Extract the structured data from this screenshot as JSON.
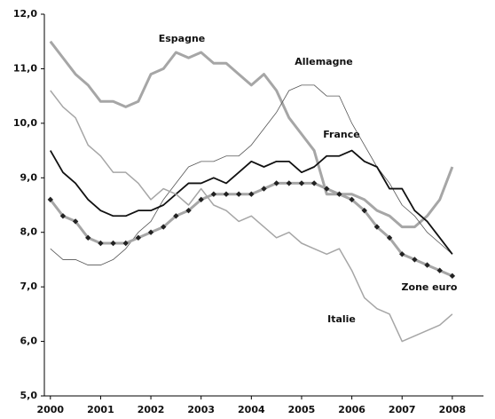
{
  "chart_data": {
    "type": "line",
    "x": [
      2000,
      2000.25,
      2000.5,
      2000.75,
      2001,
      2001.25,
      2001.5,
      2001.75,
      2002,
      2002.25,
      2002.5,
      2002.75,
      2003,
      2003.25,
      2003.5,
      2003.75,
      2004,
      2004.25,
      2004.5,
      2004.75,
      2005,
      2005.25,
      2005.5,
      2005.75,
      2006,
      2006.25,
      2006.5,
      2006.75,
      2007,
      2007.25,
      2007.5,
      2007.75,
      2008
    ],
    "series": [
      {
        "name": "Espagne",
        "color": "#a6a6a6",
        "values": [
          11.5,
          11.2,
          10.9,
          10.7,
          10.4,
          10.4,
          10.3,
          10.4,
          10.9,
          11.0,
          11.3,
          11.2,
          11.3,
          11.1,
          11.1,
          10.9,
          10.7,
          10.9,
          10.6,
          10.1,
          9.8,
          9.5,
          8.7,
          8.7,
          8.7,
          8.6,
          8.4,
          8.3,
          8.1,
          8.1,
          8.3,
          8.6,
          9.2
        ]
      },
      {
        "name": "Allemagne",
        "color": "#555555",
        "values": [
          7.7,
          7.5,
          7.5,
          7.4,
          7.4,
          7.5,
          7.7,
          8.0,
          8.2,
          8.6,
          8.9,
          9.2,
          9.3,
          9.3,
          9.4,
          9.4,
          9.6,
          9.9,
          10.2,
          10.6,
          10.7,
          10.7,
          10.5,
          10.5,
          10.0,
          9.6,
          9.2,
          8.9,
          8.5,
          8.3,
          8.0,
          7.8,
          7.6
        ]
      },
      {
        "name": "France",
        "color": "#111111",
        "values": [
          9.5,
          9.1,
          8.9,
          8.6,
          8.4,
          8.3,
          8.3,
          8.4,
          8.4,
          8.5,
          8.7,
          8.9,
          8.9,
          9.0,
          8.9,
          9.1,
          9.3,
          9.2,
          9.3,
          9.3,
          9.1,
          9.2,
          9.4,
          9.4,
          9.5,
          9.3,
          9.2,
          8.8,
          8.8,
          8.4,
          8.2,
          7.9,
          7.6
        ]
      },
      {
        "name": "Zone euro",
        "color": "#a6a6a6",
        "marker_color": "#222222",
        "values": [
          8.6,
          8.3,
          8.2,
          7.9,
          7.8,
          7.8,
          7.8,
          7.9,
          8.0,
          8.1,
          8.3,
          8.4,
          8.6,
          8.7,
          8.7,
          8.7,
          8.7,
          8.8,
          8.9,
          8.9,
          8.9,
          8.9,
          8.8,
          8.7,
          8.6,
          8.4,
          8.1,
          7.9,
          7.6,
          7.5,
          7.4,
          7.3,
          7.2
        ]
      },
      {
        "name": "Italie",
        "color": "#a6a6a6",
        "values": [
          10.6,
          10.3,
          10.1,
          9.6,
          9.4,
          9.1,
          9.1,
          8.9,
          8.6,
          8.8,
          8.7,
          8.5,
          8.8,
          8.5,
          8.4,
          8.2,
          8.3,
          8.1,
          7.9,
          8.0,
          7.8,
          7.7,
          7.6,
          7.7,
          7.3,
          6.8,
          6.6,
          6.5,
          6.0,
          6.1,
          6.2,
          6.3,
          6.5
        ]
      }
    ],
    "xlim": [
      1999.88,
      2008.62
    ],
    "xticks": [
      2000,
      2001,
      2002,
      2003,
      2004,
      2005,
      2006,
      2007,
      2008
    ],
    "ylim": [
      5,
      12
    ],
    "yticks": [
      {
        "value": 5,
        "label": "5,0"
      },
      {
        "value": 6,
        "label": "6,0"
      },
      {
        "value": 7,
        "label": "7,0"
      },
      {
        "value": 8,
        "label": "8,0"
      },
      {
        "value": 9,
        "label": "9,0"
      },
      {
        "value": 10,
        "label": "10,0"
      },
      {
        "value": 11,
        "label": "11,0"
      },
      {
        "value": 12,
        "label": "12,0"
      }
    ],
    "grid": false
  }
}
